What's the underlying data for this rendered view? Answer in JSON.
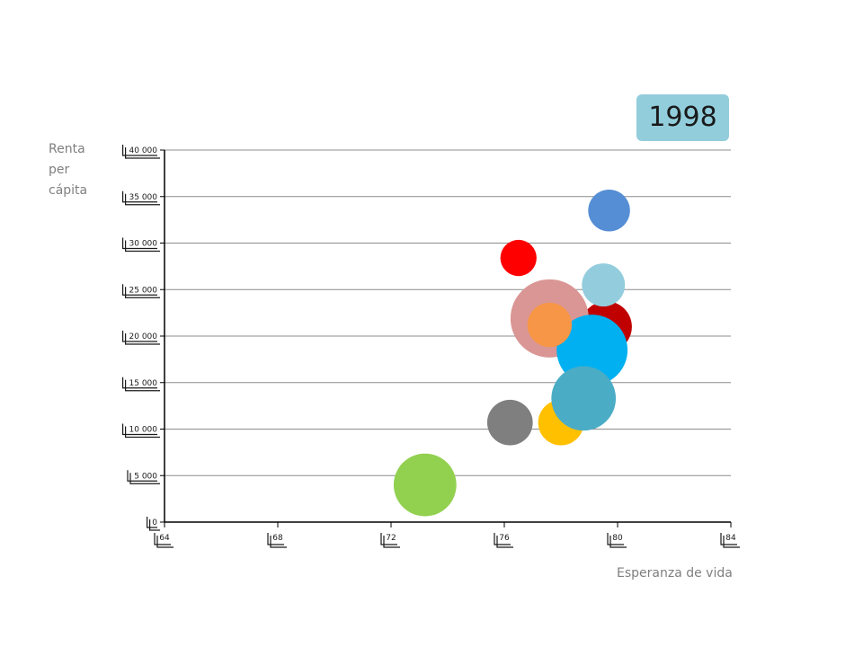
{
  "chart_data": {
    "type": "scatter",
    "subtype": "bubble",
    "year_label": "1998",
    "xlabel": "Esperanza de vida",
    "ylabel_lines": [
      "Renta",
      "per",
      "cápita"
    ],
    "xlim": [
      64,
      84
    ],
    "ylim": [
      0,
      40000
    ],
    "x_ticks": [
      64,
      68,
      72,
      76,
      80,
      84
    ],
    "x_tick_labels": [
      "64",
      "68",
      "72",
      "76",
      "80",
      "84"
    ],
    "y_ticks": [
      0,
      5000,
      10000,
      15000,
      20000,
      25000,
      30000,
      35000,
      40000
    ],
    "y_tick_labels": [
      "0",
      "5 000",
      "10 000",
      "15 000",
      "20 000",
      "25 000",
      "30 000",
      "35 000",
      "40 000"
    ],
    "grid": "horizontal",
    "points": [
      {
        "x": 73.2,
        "y": 4000,
        "size": 1.8,
        "color": "#92d050"
      },
      {
        "x": 76.2,
        "y": 10700,
        "size": 0.95,
        "color": "#7f7f7f"
      },
      {
        "x": 78.0,
        "y": 10700,
        "size": 0.95,
        "color": "#ffc000"
      },
      {
        "x": 76.5,
        "y": 28400,
        "size": 0.6,
        "color": "#ff0000"
      },
      {
        "x": 79.6,
        "y": 21000,
        "size": 1.2,
        "color": "#c00000"
      },
      {
        "x": 77.6,
        "y": 21900,
        "size": 2.8,
        "color": "#d99694"
      },
      {
        "x": 79.7,
        "y": 33500,
        "size": 0.8,
        "color": "#558ed5"
      },
      {
        "x": 79.5,
        "y": 25500,
        "size": 0.85,
        "color": "#93cddd"
      },
      {
        "x": 79.1,
        "y": 18500,
        "size": 2.3,
        "color": "#00b0f0"
      },
      {
        "x": 77.6,
        "y": 21200,
        "size": 0.9,
        "color": "#f79646"
      },
      {
        "x": 78.8,
        "y": 13300,
        "size": 1.9,
        "color": "#4bacc6"
      }
    ]
  }
}
